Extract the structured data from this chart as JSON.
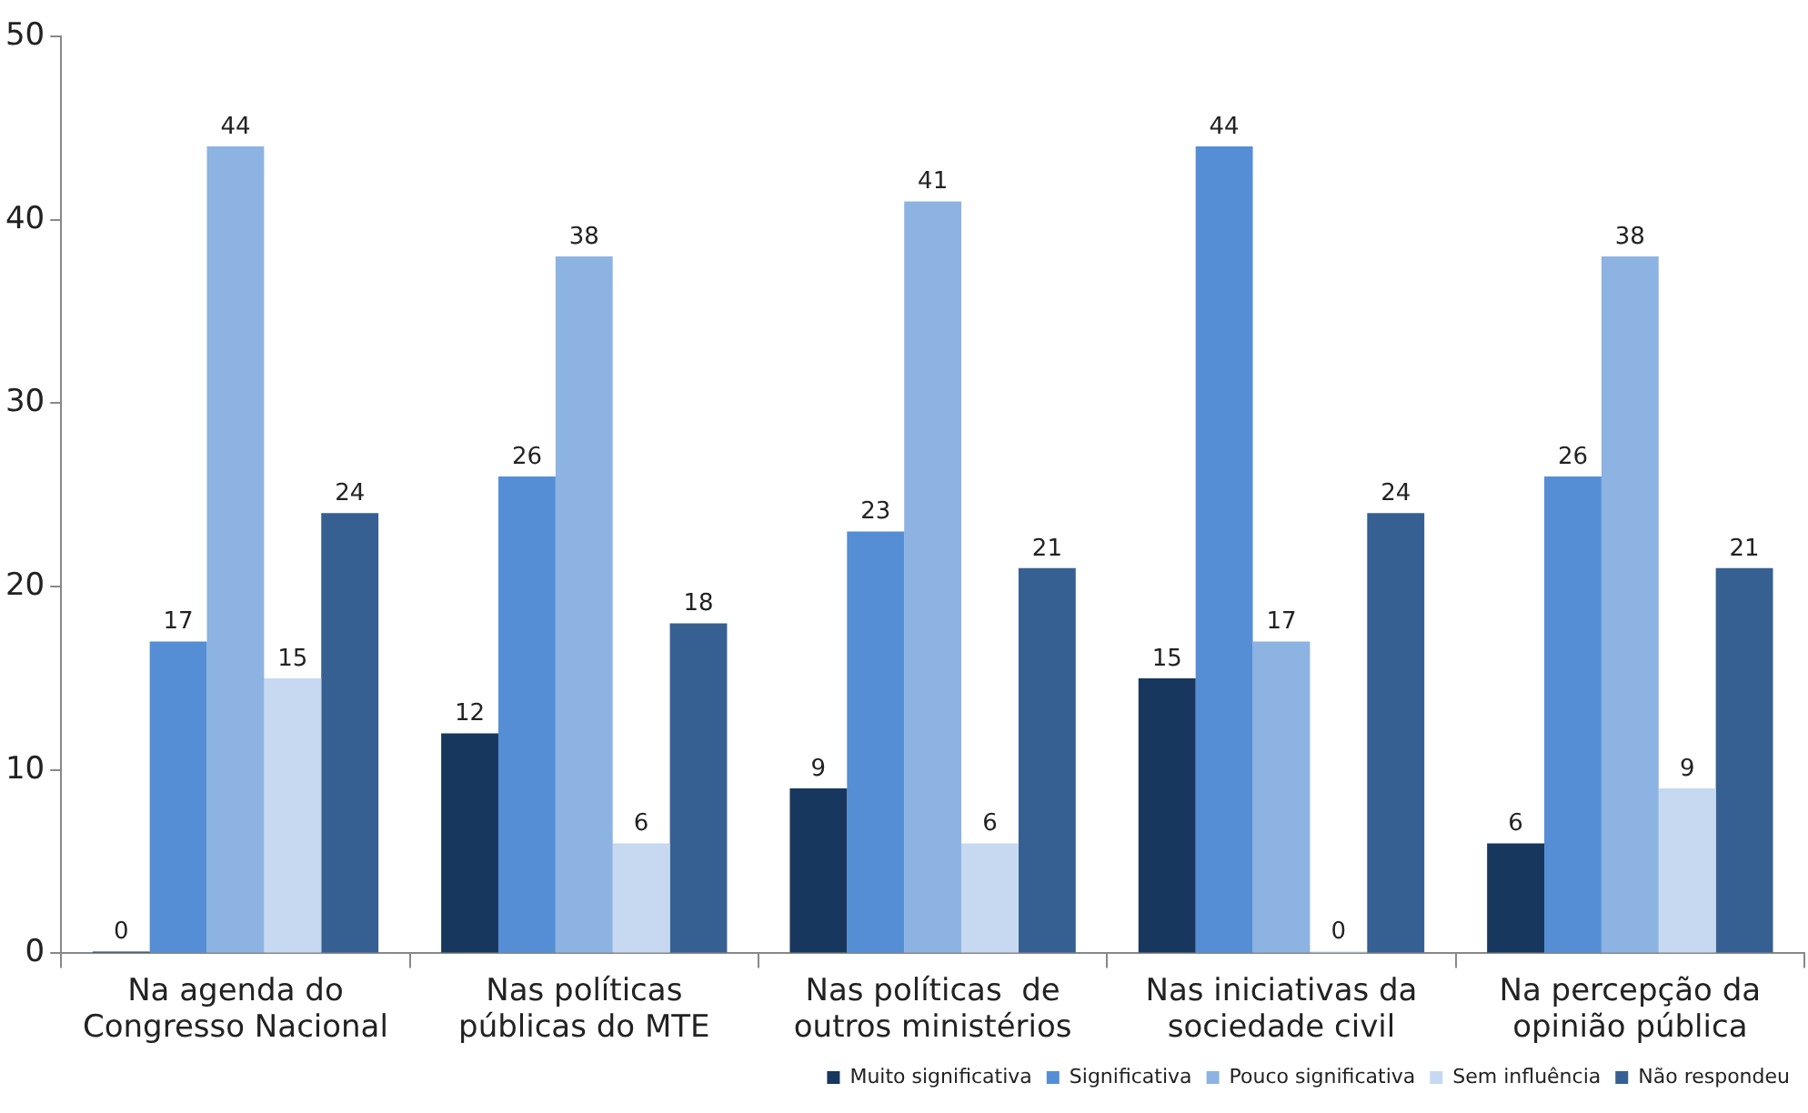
{
  "chart_data": {
    "type": "bar",
    "categories": [
      "Na agenda do Congresso Nacional",
      "Nas políticas públicas do MTE",
      "Nas políticas  de outros ministérios",
      "Nas iniciativas da sociedade civil",
      "Na percepção da opinião pública"
    ],
    "series": [
      {
        "name": "Muito significativa",
        "color": "#17375e",
        "values": [
          0,
          12,
          9,
          15,
          6
        ]
      },
      {
        "name": "Significativa",
        "color": "#558ed5",
        "values": [
          17,
          26,
          23,
          44,
          26
        ]
      },
      {
        "name": "Pouco significativa",
        "color": "#8db3e2",
        "values": [
          44,
          38,
          41,
          17,
          38
        ]
      },
      {
        "name": "Sem influência",
        "color": "#c6d9f1",
        "values": [
          15,
          6,
          6,
          0,
          9
        ]
      },
      {
        "name": "Não respondeu",
        "color": "#376092",
        "values": [
          24,
          18,
          21,
          24,
          21
        ]
      }
    ],
    "ylim": [
      0,
      50
    ],
    "yticks": [
      0,
      10,
      20,
      30,
      40,
      50
    ],
    "grid": false,
    "legend": "bottom right",
    "data_labels": true
  }
}
